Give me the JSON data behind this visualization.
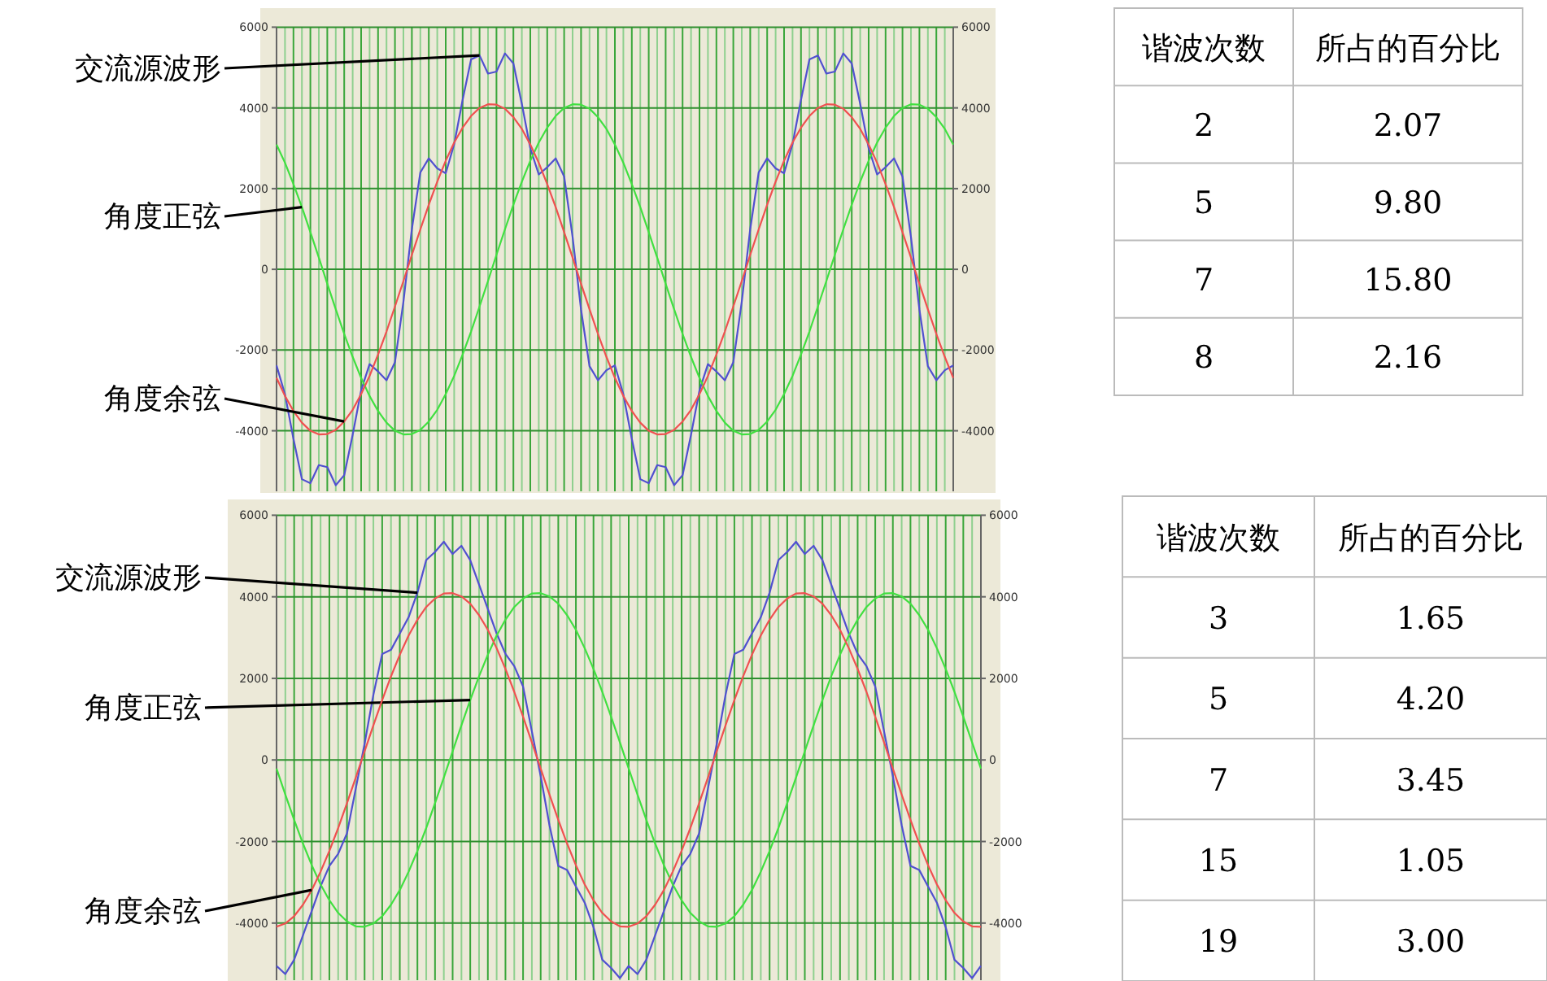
{
  "chart_data": [
    {
      "type": "line",
      "categories": [
        null,
        null,
        null,
        null,
        null,
        null,
        null,
        null,
        null,
        null,
        null,
        null,
        null,
        null,
        null,
        null,
        null,
        null,
        null,
        null,
        null,
        null,
        null,
        null,
        null,
        null,
        null,
        null,
        null,
        null,
        null,
        null,
        null,
        null,
        null,
        null,
        null,
        null,
        null,
        null,
        null,
        null,
        null,
        null,
        null,
        null,
        null,
        null,
        null,
        null,
        null,
        null,
        null,
        null,
        null,
        null,
        null,
        null,
        null,
        null,
        null,
        null,
        null,
        null,
        null,
        null,
        null,
        null,
        null,
        null,
        null,
        null,
        null,
        null,
        null,
        null,
        null,
        null,
        null,
        null,
        null
      ],
      "ylim": [
        -5500,
        6000
      ],
      "yticks": [
        -4000,
        -2000,
        0,
        2000,
        4000,
        6000
      ],
      "y2lim": [
        -5500,
        6000
      ],
      "y2ticks": [
        -4000,
        -2000,
        0,
        2000,
        4000,
        6000
      ],
      "grid": true,
      "legend": false,
      "series": [
        {
          "name": "交流源波形",
          "color": "#5050d0",
          "values": [
            -2380,
            -3100,
            -4200,
            -5200,
            -5300,
            -4850,
            -4900,
            -5350,
            -5100,
            -4100,
            -3000,
            -2350,
            -2530,
            -2750,
            -2300,
            -800,
            1000,
            2400,
            2750,
            2500,
            2380,
            3100,
            4200,
            5200,
            5300,
            4850,
            4900,
            5350,
            5100,
            4100,
            3000,
            2350,
            2530,
            2750,
            2300,
            800,
            -1000,
            -2400,
            -2750,
            -2500,
            -2380,
            -3100,
            -4200,
            -5200,
            -5300,
            -4850,
            -4900,
            -5350,
            -5100,
            -4100,
            -3000,
            -2350,
            -2530,
            -2750,
            -2300,
            -800,
            1000,
            2400,
            2750,
            2500,
            2380,
            3100,
            4200,
            5200,
            5300,
            4850,
            4900,
            5350,
            5100,
            4100,
            3000,
            2350,
            2530,
            2750,
            2300,
            800,
            -1000,
            -2400,
            -2750,
            -2500,
            -2380
          ]
        },
        {
          "name": "角度正弦",
          "color": "#40e040",
          "values": [
            3090,
            2640,
            2110,
            1540,
            920,
            290,
            -360,
            -990,
            -1600,
            -2170,
            -2690,
            -3140,
            -3510,
            -3800,
            -4000,
            -4090,
            -4080,
            -3980,
            -3770,
            -3480,
            -3090,
            -2640,
            -2110,
            -1540,
            -920,
            -290,
            360,
            990,
            1600,
            2170,
            2690,
            3140,
            3510,
            3800,
            4000,
            4090,
            4080,
            3980,
            3770,
            3480,
            3090,
            2640,
            2110,
            1540,
            920,
            290,
            -360,
            -990,
            -1600,
            -2170,
            -2690,
            -3140,
            -3510,
            -3800,
            -4000,
            -4090,
            -4080,
            -3980,
            -3770,
            -3480,
            -3090,
            -2640,
            -2110,
            -1540,
            -920,
            -290,
            360,
            990,
            1600,
            2170,
            2690,
            3140,
            3510,
            3800,
            4000,
            4090,
            4080,
            3980,
            3770,
            3480,
            3090
          ]
        },
        {
          "name": "角度余弦",
          "color": "#f05050",
          "values": [
            -2690,
            -3140,
            -3510,
            -3800,
            -4000,
            -4090,
            -4080,
            -3980,
            -3770,
            -3480,
            -3090,
            -2640,
            -2110,
            -1540,
            -920,
            -290,
            360,
            990,
            1600,
            2170,
            2690,
            3140,
            3510,
            3800,
            4000,
            4090,
            4080,
            3980,
            3770,
            3480,
            3090,
            2640,
            2110,
            1540,
            920,
            290,
            -360,
            -990,
            -1600,
            -2170,
            -2690,
            -3140,
            -3510,
            -3800,
            -4000,
            -4090,
            -4080,
            -3980,
            -3770,
            -3480,
            -3090,
            -2640,
            -2110,
            -1540,
            -920,
            -290,
            360,
            990,
            1600,
            2170,
            2690,
            3140,
            3510,
            3800,
            4000,
            4090,
            4080,
            3980,
            3770,
            3480,
            3090,
            2640,
            2110,
            1540,
            920,
            290,
            -360,
            -990,
            -1600,
            -2170,
            -2690
          ]
        }
      ]
    },
    {
      "type": "other",
      "xlabel": "谐波次数",
      "ylabel": "所占的百分比",
      "categories": [
        "2",
        "5",
        "7",
        "8"
      ],
      "value_labels": [
        "2.07",
        "9.80",
        "15.80",
        "2.16"
      ]
    },
    {
      "type": "line",
      "categories": [
        null,
        null,
        null,
        null,
        null,
        null,
        null,
        null,
        null,
        null,
        null,
        null,
        null,
        null,
        null,
        null,
        null,
        null,
        null,
        null,
        null,
        null,
        null,
        null,
        null,
        null,
        null,
        null,
        null,
        null,
        null,
        null,
        null,
        null,
        null,
        null,
        null,
        null,
        null,
        null,
        null,
        null,
        null,
        null,
        null,
        null,
        null,
        null,
        null,
        null,
        null,
        null,
        null,
        null,
        null,
        null,
        null,
        null,
        null,
        null,
        null,
        null,
        null,
        null,
        null,
        null,
        null,
        null,
        null,
        null,
        null,
        null,
        null,
        null,
        null,
        null,
        null,
        null,
        null,
        null,
        null
      ],
      "ylim": [
        -5400,
        6000
      ],
      "yticks": [
        -4000,
        -2000,
        0,
        2000,
        4000,
        6000
      ],
      "y2lim": [
        -5400,
        6000
      ],
      "y2ticks": [
        -4000,
        -2000,
        0,
        2000,
        4000,
        6000
      ],
      "grid": true,
      "legend": false,
      "series": [
        {
          "name": "交流源波形",
          "color": "#5050d0",
          "values": [
            -5050,
            -5250,
            -4900,
            -4300,
            -3700,
            -3100,
            -2600,
            -2300,
            -1800,
            -700,
            400,
            1600,
            2600,
            2700,
            3100,
            3500,
            4100,
            4900,
            5100,
            5350,
            5050,
            5250,
            4900,
            4300,
            3700,
            3100,
            2600,
            2300,
            1800,
            700,
            -400,
            -1600,
            -2600,
            -2700,
            -3100,
            -3500,
            -4100,
            -4900,
            -5100,
            -5350,
            -5050,
            -5250,
            -4900,
            -4300,
            -3700,
            -3100,
            -2600,
            -2300,
            -1800,
            -700,
            400,
            1600,
            2600,
            2700,
            3100,
            3500,
            4100,
            4900,
            5100,
            5350,
            5050,
            5250,
            4900,
            4300,
            3700,
            3100,
            2600,
            2300,
            1800,
            700,
            -400,
            -1600,
            -2600,
            -2700,
            -3100,
            -3500,
            -4100,
            -4900,
            -5100,
            -5350,
            -5050
          ]
        },
        {
          "name": "角度正弦",
          "color": "#40e040",
          "values": [
            -210,
            -850,
            -1470,
            -2050,
            -2580,
            -3050,
            -3440,
            -3750,
            -3960,
            -4080,
            -4090,
            -4010,
            -3830,
            -3550,
            -3190,
            -2740,
            -2230,
            -1670,
            -1060,
            -430,
            210,
            850,
            1470,
            2050,
            2580,
            3050,
            3440,
            3750,
            3960,
            4080,
            4090,
            4010,
            3830,
            3550,
            3190,
            2740,
            2230,
            1670,
            1060,
            430,
            -210,
            -850,
            -1470,
            -2050,
            -2580,
            -3050,
            -3440,
            -3750,
            -3960,
            -4080,
            -4090,
            -4010,
            -3830,
            -3550,
            -3190,
            -2740,
            -2230,
            -1670,
            -1060,
            -430,
            210,
            850,
            1470,
            2050,
            2580,
            3050,
            3440,
            3750,
            3960,
            4080,
            4090,
            4010,
            3830,
            3550,
            3190,
            2740,
            2230,
            1670,
            1060,
            430,
            -210
          ]
        },
        {
          "name": "角度余弦",
          "color": "#f05050",
          "values": [
            -4090,
            -4010,
            -3830,
            -3550,
            -3190,
            -2740,
            -2230,
            -1670,
            -1060,
            -430,
            210,
            850,
            1470,
            2050,
            2580,
            3050,
            3440,
            3750,
            3960,
            4080,
            4090,
            4010,
            3830,
            3550,
            3190,
            2740,
            2230,
            1670,
            1060,
            430,
            -210,
            -850,
            -1470,
            -2050,
            -2580,
            -3050,
            -3440,
            -3750,
            -3960,
            -4080,
            -4090,
            -4010,
            -3830,
            -3550,
            -3190,
            -2740,
            -2230,
            -1670,
            -1060,
            -430,
            210,
            850,
            1470,
            2050,
            2580,
            3050,
            3440,
            3750,
            3960,
            4080,
            4090,
            4010,
            3830,
            3550,
            3190,
            2740,
            2230,
            1670,
            1060,
            430,
            -210,
            -850,
            -1470,
            -2050,
            -2580,
            -3050,
            -3440,
            -3750,
            -3960,
            -4080,
            -4090
          ]
        }
      ]
    },
    {
      "type": "other",
      "xlabel": "谐波次数",
      "ylabel": "所占的百分比",
      "categories": [
        "3",
        "5",
        "7",
        "15",
        "19"
      ],
      "value_labels": [
        "1.65",
        "4.20",
        "3.45",
        "1.05",
        "3.00"
      ]
    }
  ]
}
